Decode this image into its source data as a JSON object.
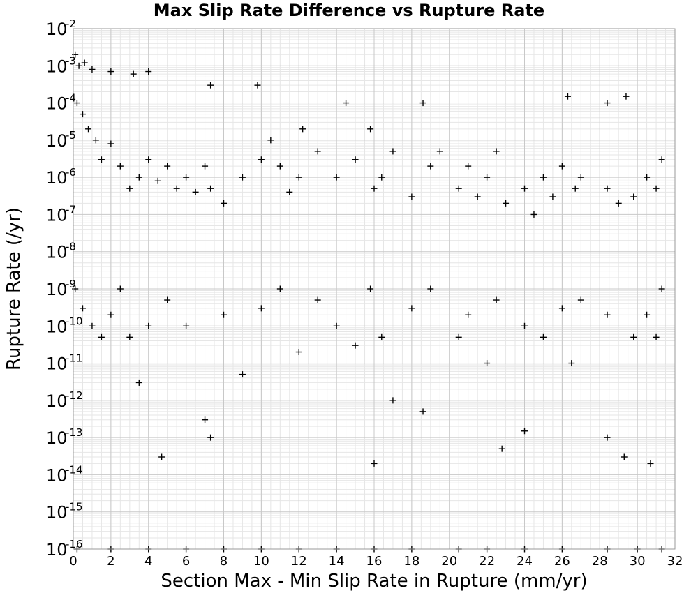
{
  "chart_data": {
    "type": "scatter",
    "title": "Max Slip Rate Difference vs Rupture Rate",
    "xlabel": "Section Max - Min Slip Rate in Rupture (mm/yr)",
    "ylabel": "Rupture Rate (/yr)",
    "marker": "+",
    "marker_color": "#000000",
    "grid": true,
    "yscale": "log",
    "xlim": [
      0,
      32
    ],
    "ylim": [
      1e-16,
      0.01
    ],
    "xticks": [
      "0",
      "2",
      "4",
      "6",
      "8",
      "10",
      "12",
      "14",
      "16",
      "18",
      "20",
      "22",
      "24",
      "26",
      "28",
      "30",
      "32"
    ],
    "yticks": [
      {
        "base": "10",
        "exp": "-2"
      },
      {
        "base": "10",
        "exp": "-3"
      },
      {
        "base": "10",
        "exp": "-4"
      },
      {
        "base": "10",
        "exp": "-5"
      },
      {
        "base": "10",
        "exp": "-6"
      },
      {
        "base": "10",
        "exp": "-7"
      },
      {
        "base": "10",
        "exp": "-8"
      },
      {
        "base": "10",
        "exp": "-9"
      },
      {
        "base": "10",
        "exp": "-10"
      },
      {
        "base": "10",
        "exp": "-11"
      },
      {
        "base": "10",
        "exp": "-12"
      },
      {
        "base": "10",
        "exp": "-13"
      },
      {
        "base": "10",
        "exp": "-14"
      },
      {
        "base": "10",
        "exp": "-15"
      },
      {
        "base": "10",
        "exp": "-16"
      }
    ],
    "series": [
      {
        "points": [
          [
            0.1,
            0.002
          ],
          [
            0.3,
            0.001
          ],
          [
            0.6,
            0.0012
          ],
          [
            1.0,
            0.0008
          ],
          [
            2.0,
            0.0007
          ],
          [
            3.2,
            0.0006
          ],
          [
            4.0,
            0.0007
          ],
          [
            0.2,
            0.0001
          ],
          [
            0.5,
            5e-05
          ],
          [
            0.8,
            2e-05
          ],
          [
            1.2,
            1e-05
          ],
          [
            1.5,
            3e-06
          ],
          [
            2.0,
            8e-06
          ],
          [
            2.5,
            2e-06
          ],
          [
            3.0,
            5e-07
          ],
          [
            3.5,
            1e-06
          ],
          [
            4.0,
            3e-06
          ],
          [
            4.5,
            8e-07
          ],
          [
            5.0,
            2e-06
          ],
          [
            5.5,
            5e-07
          ],
          [
            6.0,
            1e-06
          ],
          [
            6.5,
            4e-07
          ],
          [
            7.0,
            2e-06
          ],
          [
            7.3,
            0.0003
          ],
          [
            7.3,
            5e-07
          ],
          [
            8.0,
            2e-07
          ],
          [
            9.0,
            1e-06
          ],
          [
            9.8,
            0.0003
          ],
          [
            10.0,
            3e-06
          ],
          [
            10.5,
            1e-05
          ],
          [
            11.0,
            2e-06
          ],
          [
            11.5,
            4e-07
          ],
          [
            12.0,
            1e-06
          ],
          [
            12.2,
            2e-05
          ],
          [
            13.0,
            5e-06
          ],
          [
            14.0,
            1e-06
          ],
          [
            14.5,
            0.0001
          ],
          [
            15.0,
            3e-06
          ],
          [
            15.8,
            2e-05
          ],
          [
            16.0,
            5e-07
          ],
          [
            16.4,
            1e-06
          ],
          [
            17.0,
            5e-06
          ],
          [
            18.0,
            3e-07
          ],
          [
            18.6,
            0.0001
          ],
          [
            19.0,
            2e-06
          ],
          [
            19.5,
            5e-06
          ],
          [
            20.5,
            5e-07
          ],
          [
            21.0,
            2e-06
          ],
          [
            21.5,
            3e-07
          ],
          [
            22.0,
            1e-06
          ],
          [
            22.5,
            5e-06
          ],
          [
            23.0,
            2e-07
          ],
          [
            24.0,
            5e-07
          ],
          [
            24.5,
            1e-07
          ],
          [
            25.0,
            1e-06
          ],
          [
            25.5,
            3e-07
          ],
          [
            26.0,
            2e-06
          ],
          [
            26.3,
            0.00015
          ],
          [
            26.7,
            5e-07
          ],
          [
            27.0,
            1e-06
          ],
          [
            28.4,
            5e-07
          ],
          [
            28.4,
            0.0001
          ],
          [
            29.0,
            2e-07
          ],
          [
            29.4,
            0.00015
          ],
          [
            29.8,
            3e-07
          ],
          [
            30.5,
            1e-06
          ],
          [
            31.0,
            5e-07
          ],
          [
            31.3,
            3e-06
          ],
          [
            0.1,
            1e-09
          ],
          [
            0.5,
            3e-10
          ],
          [
            1.0,
            1e-10
          ],
          [
            1.5,
            5e-11
          ],
          [
            2.0,
            2e-10
          ],
          [
            2.5,
            1e-09
          ],
          [
            3.0,
            5e-11
          ],
          [
            3.5,
            3e-12
          ],
          [
            4.0,
            1e-10
          ],
          [
            4.7,
            3e-14
          ],
          [
            5.0,
            5e-10
          ],
          [
            6.0,
            1e-10
          ],
          [
            7.0,
            3e-13
          ],
          [
            7.3,
            1e-13
          ],
          [
            8.0,
            2e-10
          ],
          [
            9.0,
            5e-12
          ],
          [
            10.0,
            3e-10
          ],
          [
            11.0,
            1e-09
          ],
          [
            12.0,
            2e-11
          ],
          [
            13.0,
            5e-10
          ],
          [
            14.0,
            1e-10
          ],
          [
            15.0,
            3e-11
          ],
          [
            15.8,
            1e-09
          ],
          [
            16.0,
            2e-14
          ],
          [
            16.4,
            5e-11
          ],
          [
            17.0,
            1e-12
          ],
          [
            18.0,
            3e-10
          ],
          [
            18.6,
            5e-13
          ],
          [
            19.0,
            1e-09
          ],
          [
            20.5,
            5e-11
          ],
          [
            21.0,
            2e-10
          ],
          [
            22.0,
            1e-11
          ],
          [
            22.5,
            5e-10
          ],
          [
            22.8,
            5e-14
          ],
          [
            24.0,
            1e-10
          ],
          [
            24.0,
            1.5e-13
          ],
          [
            25.0,
            5e-11
          ],
          [
            26.0,
            3e-10
          ],
          [
            26.5,
            1e-11
          ],
          [
            27.0,
            5e-10
          ],
          [
            28.4,
            1e-13
          ],
          [
            28.4,
            2e-10
          ],
          [
            29.3,
            3e-14
          ],
          [
            29.8,
            5e-11
          ],
          [
            30.5,
            2e-10
          ],
          [
            30.7,
            2e-14
          ],
          [
            31.0,
            5e-11
          ],
          [
            31.3,
            1e-09
          ],
          [
            0.2,
            1e-16
          ],
          [
            2.0,
            1e-16
          ],
          [
            4.0,
            1e-16
          ],
          [
            6.0,
            1e-16
          ],
          [
            8.0,
            1e-16
          ],
          [
            10.0,
            1e-16
          ],
          [
            12.0,
            1e-16
          ],
          [
            14.0,
            1e-16
          ],
          [
            16.0,
            1e-16
          ],
          [
            18.0,
            1e-16
          ],
          [
            20.5,
            1e-16
          ],
          [
            22.0,
            1e-16
          ],
          [
            24.0,
            1e-16
          ],
          [
            26.0,
            1e-16
          ],
          [
            28.4,
            1e-16
          ],
          [
            30.0,
            1e-16
          ],
          [
            31.3,
            1e-16
          ]
        ]
      }
    ]
  }
}
